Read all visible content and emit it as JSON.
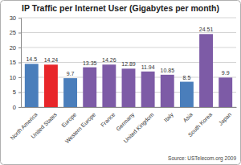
{
  "chart_data": {
    "type": "bar",
    "title": "IP Traffic per Internet User (Gigabytes per month)",
    "categories": [
      "North America",
      "United States",
      "Europe",
      "Western Europe",
      "France",
      "Germany",
      "United Kingdom",
      "Italy",
      "Asia",
      "South Korea",
      "Japan"
    ],
    "values": [
      14.5,
      14.24,
      9.7,
      13.35,
      14.26,
      12.89,
      11.94,
      10.85,
      8.5,
      24.51,
      9.9
    ],
    "colors": [
      "#4a7ebb",
      "#e8262a",
      "#4a7ebb",
      "#7d5ba6",
      "#7d5ba6",
      "#7d5ba6",
      "#7d5ba6",
      "#7d5ba6",
      "#4a7ebb",
      "#7d5ba6",
      "#7d5ba6"
    ],
    "ylim": [
      0,
      30
    ],
    "yticks": [
      0,
      5,
      10,
      15,
      20,
      25,
      30
    ],
    "grid": true,
    "data_labels": true,
    "annotations": [
      "Source: USTelecom.org 2009"
    ]
  }
}
